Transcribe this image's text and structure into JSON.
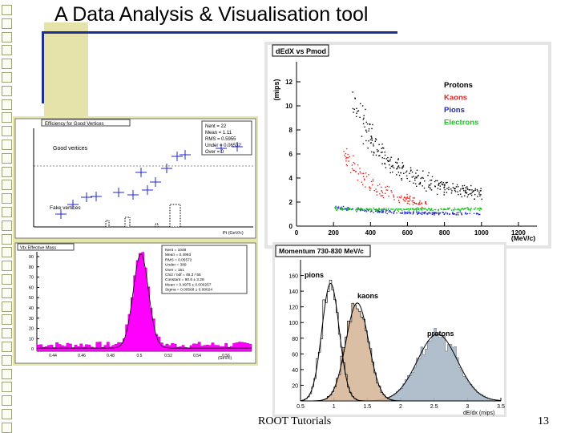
{
  "slide": {
    "title": "A Data Analysis & Visualisation tool",
    "footer_center": "ROOT Tutorials",
    "page_number": "13"
  },
  "colors": {
    "accent_line": "#1f2f8f",
    "panel_bg": "#e6e6a8",
    "magenta": "#ff00ff",
    "protons": "#000000",
    "kaons": "#e8231f",
    "pions": "#2027c8",
    "electrons": "#19c21f",
    "hatched_fill": "#d7b89a",
    "proton_hist_fill": "#a9b8c8"
  },
  "left_top": {
    "title": "Efficiency for Good Vertices",
    "stats": [
      "Nent = 22",
      "Mean = 1.11",
      "RMS = 0.5955",
      "Under = 0.06532",
      "Over = 0"
    ],
    "label_good": "Good vertices",
    "label_fake": "Fake vertices",
    "x_axis_label": "Pt (GeV/c)"
  },
  "left_bottom": {
    "title": "Vtx Effective Mass",
    "stats": [
      "Nent = 1048",
      "Mean = 0.4993",
      "RMS = 0.05572",
      "Under = 389",
      "Over = 151",
      "Chi2 / ndf = 45.3 / 55",
      "Constant = 90.6 ± 3.28",
      "Mean = 0.4975 ± 0.000257",
      "Sigma = 0.00568 ± 0.00024"
    ],
    "y_ticks": [
      "90",
      "80",
      "70",
      "60",
      "50",
      "40",
      "30",
      "20",
      "10",
      "0"
    ],
    "x_ticks": [
      "0.44",
      "0.46",
      "0.48",
      "0.5",
      "0.52",
      "0.54",
      "0.56"
    ],
    "x_axis_label": "(GeV/c)"
  },
  "right_top": {
    "title": "dEdX vs Pmod",
    "y_label": "(mips)",
    "x_label": "(MeV/c)"
  },
  "right_bottom": {
    "title": "Momentum 730-830 MeV/c",
    "label_pions": "pions",
    "label_kaons": "kaons",
    "label_protons": "protons",
    "x_label": "dE/dx (mips)"
  },
  "chart_data": [
    {
      "type": "scatter",
      "title": "dEdX vs Pmod",
      "xlabel": "(MeV/c)",
      "ylabel": "(mips)",
      "xlim": [
        0,
        1300
      ],
      "ylim": [
        0,
        13
      ],
      "x_ticks": [
        "0",
        "200",
        "400",
        "600",
        "800",
        "1000",
        "1200"
      ],
      "y_ticks": [
        "0",
        "2",
        "4",
        "6",
        "8",
        "10",
        "12"
      ],
      "legend_position": "top-right",
      "series": [
        {
          "name": "Protons",
          "color": "#000000",
          "band": {
            "x": [
              300,
              450,
              600,
              800,
              1000
            ],
            "y": [
              10.5,
              6.2,
              4.3,
              3.3,
              2.8
            ],
            "spread": 0.18
          }
        },
        {
          "name": "Kaons",
          "color": "#e8231f",
          "band": {
            "x": [
              250,
              400,
              550,
              700
            ],
            "y": [
              6.0,
              3.4,
              2.4,
              1.9
            ],
            "spread": 0.18
          }
        },
        {
          "name": "Pions",
          "color": "#2027c8",
          "band": {
            "x": [
              200,
              400,
              600,
              800,
              1000
            ],
            "y": [
              1.6,
              1.3,
              1.15,
              1.1,
              1.05
            ],
            "spread": 0.1
          }
        },
        {
          "name": "Electrons",
          "color": "#19c21f",
          "band": {
            "x": [
              200,
              400,
              600,
              800,
              1000
            ],
            "y": [
              1.5,
              1.45,
              1.45,
              1.45,
              1.45
            ],
            "spread": 0.08
          }
        }
      ]
    },
    {
      "type": "bar",
      "title": "Momentum 730-830 MeV/c",
      "xlabel": "dE/dx (mips)",
      "xlim": [
        0.5,
        3.5
      ],
      "ylim": [
        0,
        180
      ],
      "x_ticks": [
        "0.5",
        "1",
        "1.5",
        "2",
        "2.5",
        "3",
        "3.5"
      ],
      "y_ticks": [
        "0",
        "20",
        "40",
        "60",
        "80",
        "100",
        "120",
        "140",
        "160"
      ],
      "series": [
        {
          "name": "pions",
          "mean": 0.95,
          "sigma": 0.13,
          "peak": 150,
          "fill": "#ffffff"
        },
        {
          "name": "kaons",
          "mean": 1.35,
          "sigma": 0.17,
          "peak": 125,
          "fill": "#d7b89a"
        },
        {
          "name": "protons",
          "mean": 2.55,
          "sigma": 0.3,
          "peak": 85,
          "fill": "#a9b8c8"
        }
      ]
    },
    {
      "type": "bar",
      "title": "Vtx Effective Mass",
      "xlabel": "(GeV/c)",
      "xlim": [
        0.42,
        0.58
      ],
      "ylim": [
        0,
        95
      ],
      "peak": {
        "mean": 0.4975,
        "sigma": 0.0057,
        "height": 90
      }
    }
  ]
}
